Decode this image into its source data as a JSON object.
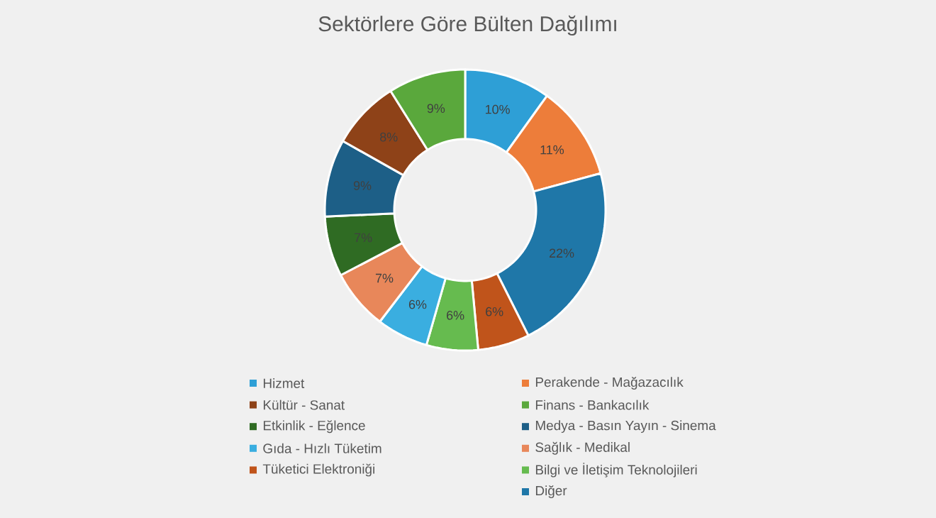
{
  "chart_data": {
    "type": "donut",
    "title": "Sektörlere Göre Bülten Dağılımı",
    "categories": [
      "Hizmet",
      "Perakende - Mağazacılık",
      "Diğer",
      "Tüketici Elektroniği",
      "Bilgi ve İletişim Teknolojileri",
      "Gıda - Hızlı Tüketim",
      "Sağlık - Medikal",
      "Etkinlik - Eğlence",
      "Medya - Basın Yayın - Sinema",
      "Kültür - Sanat",
      "Finans - Bankacılık"
    ],
    "values": [
      10,
      11,
      22,
      6,
      6,
      6,
      7,
      7,
      9,
      8,
      9
    ],
    "value_labels": [
      "10%",
      "11%",
      "22%",
      "6%",
      "6%",
      "6%",
      "7%",
      "7%",
      "9%",
      "8%",
      "9%"
    ],
    "colors": [
      "#2e9fd6",
      "#ed7d3a",
      "#1f77a8",
      "#c0541b",
      "#66bb4f",
      "#3aaee0",
      "#e8875a",
      "#2f6b23",
      "#1d5f87",
      "#8e4218",
      "#5aa83c"
    ],
    "legend": "bottom"
  }
}
